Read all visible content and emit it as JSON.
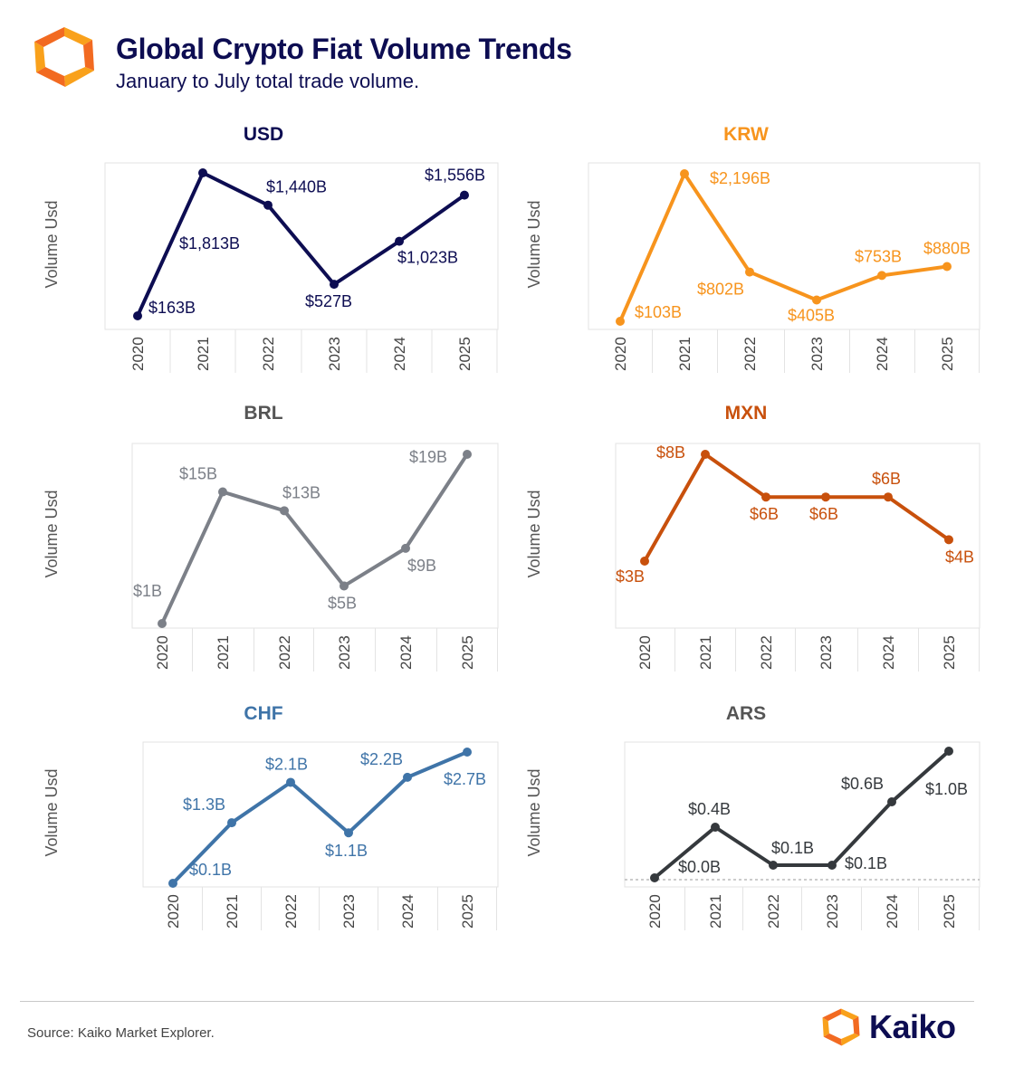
{
  "header": {
    "title": "Global Crypto Fiat Volume Trends",
    "subtitle": "January to July total trade volume."
  },
  "footer": {
    "source": "Source: Kaiko Market Explorer.",
    "brand": "Kaiko"
  },
  "colors": {
    "logo_light": "#f9a11b",
    "logo_dark": "#f26a21",
    "frame": "#e3e3e3",
    "tick": "#444444",
    "axis_label": "#555555"
  },
  "chart_data": [
    {
      "type": "line",
      "title": "USD",
      "ylabel": "Volume Usd",
      "categories": [
        "2020",
        "2021",
        "2022",
        "2023",
        "2024",
        "2025"
      ],
      "values": [
        163,
        1813,
        1440,
        527,
        1023,
        1556
      ],
      "labels": [
        "$163B",
        "$1,813B",
        "$1,440B",
        "$527B",
        "$1,023B",
        "$1,556B"
      ],
      "color": "#0d0d52"
    },
    {
      "type": "line",
      "title": "KRW",
      "ylabel": "Volume Usd",
      "categories": [
        "2020",
        "2021",
        "2022",
        "2023",
        "2024",
        "2025"
      ],
      "values": [
        103,
        2196,
        802,
        405,
        753,
        880
      ],
      "labels": [
        "$103B",
        "$2,196B",
        "$802B",
        "$405B",
        "$753B",
        "$880B"
      ],
      "color": "#f7941d"
    },
    {
      "type": "line",
      "title": "BRL",
      "ylabel": "Volume Usd",
      "categories": [
        "2020",
        "2021",
        "2022",
        "2023",
        "2024",
        "2025"
      ],
      "values": [
        1,
        15,
        13,
        5,
        9,
        19
      ],
      "labels": [
        "$1B",
        "$15B",
        "$13B",
        "$5B",
        "$9B",
        "$19B"
      ],
      "color": "#7c8088",
      "title_color": "#555555"
    },
    {
      "type": "line",
      "title": "MXN",
      "ylabel": "Volume Usd",
      "categories": [
        "2020",
        "2021",
        "2022",
        "2023",
        "2024",
        "2025"
      ],
      "values": [
        3,
        8,
        6,
        6,
        6,
        4
      ],
      "labels": [
        "$3B",
        "$8B",
        "$6B",
        "$6B",
        "$6B",
        "$4B"
      ],
      "color": "#c8500c"
    },
    {
      "type": "line",
      "title": "CHF",
      "ylabel": "Volume Usd",
      "categories": [
        "2020",
        "2021",
        "2022",
        "2023",
        "2024",
        "2025"
      ],
      "values": [
        0.1,
        1.3,
        2.1,
        1.1,
        2.2,
        2.7
      ],
      "labels": [
        "$0.1B",
        "$1.3B",
        "$2.1B",
        "$1.1B",
        "$2.2B",
        "$2.7B"
      ],
      "color": "#3f74a8"
    },
    {
      "type": "line",
      "title": "ARS",
      "ylabel": "Volume Usd",
      "categories": [
        "2020",
        "2021",
        "2022",
        "2023",
        "2024",
        "2025"
      ],
      "values": [
        0.0,
        0.4,
        0.1,
        0.1,
        0.6,
        1.0
      ],
      "labels": [
        "$0.0B",
        "$0.4B",
        "$0.1B",
        "$0.1B",
        "$0.6B",
        "$1.0B"
      ],
      "color": "#35393d",
      "title_color": "#555555",
      "zero_line": true
    }
  ]
}
